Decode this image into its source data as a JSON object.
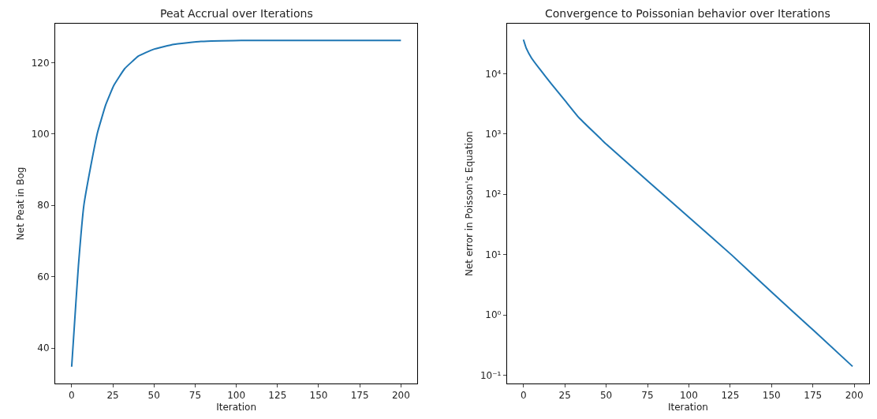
{
  "chart_data": [
    {
      "type": "line",
      "title": "Peat Accrual over Iterations",
      "xlabel": "Iteration",
      "ylabel": "Net Peat in Bog",
      "x": [
        0,
        2.5,
        4.1,
        7.4,
        11.6,
        15.7,
        20.7,
        25.6,
        32.2,
        40.5,
        49.6,
        62,
        78.5,
        103,
        200
      ],
      "series": [
        {
          "color": "#1f77b4",
          "values": [
            34.8,
            52.3,
            63.1,
            80,
            91,
            100.4,
            108.2,
            113.6,
            118.3,
            121.8,
            123.7,
            125.1,
            125.9,
            126.2,
            126.2
          ]
        }
      ],
      "xlim": [
        -10,
        210
      ],
      "ylim": [
        30.1,
        130.9
      ],
      "xticks": [
        0,
        25,
        50,
        75,
        100,
        125,
        150,
        175,
        200
      ],
      "yticks": [
        40,
        60,
        80,
        100,
        120
      ]
    },
    {
      "type": "line",
      "title": "Convergence to Poissonian behavior over Iterations",
      "xlabel": "Iteration",
      "ylabel": "Net error in Poisson's Equation",
      "log": "y",
      "x": [
        0,
        1.7,
        5,
        10,
        16.8,
        25.2,
        33.6,
        50.4,
        75.6,
        100.8,
        126,
        151,
        176.5,
        199
      ],
      "series": [
        {
          "color": "#1f77b4",
          "values": [
            36700,
            26400,
            18000,
            11800,
            6800,
            3570,
            1860,
            667,
            162,
            40,
            9.8,
            2.26,
            0.52,
            0.14
          ]
        }
      ],
      "xlim": [
        -10,
        209
      ],
      "ylim": [
        0.073,
        67600
      ],
      "xticks": [
        0,
        25,
        50,
        75,
        100,
        125,
        150,
        175,
        200
      ],
      "yticks": [
        {
          "value": 0.1,
          "label": "10⁻¹"
        },
        {
          "value": 1,
          "label": "10⁰"
        },
        {
          "value": 10,
          "label": "10¹"
        },
        {
          "value": 100,
          "label": "10²"
        },
        {
          "value": 1000,
          "label": "10³"
        },
        {
          "value": 10000,
          "label": "10⁴"
        }
      ]
    }
  ]
}
